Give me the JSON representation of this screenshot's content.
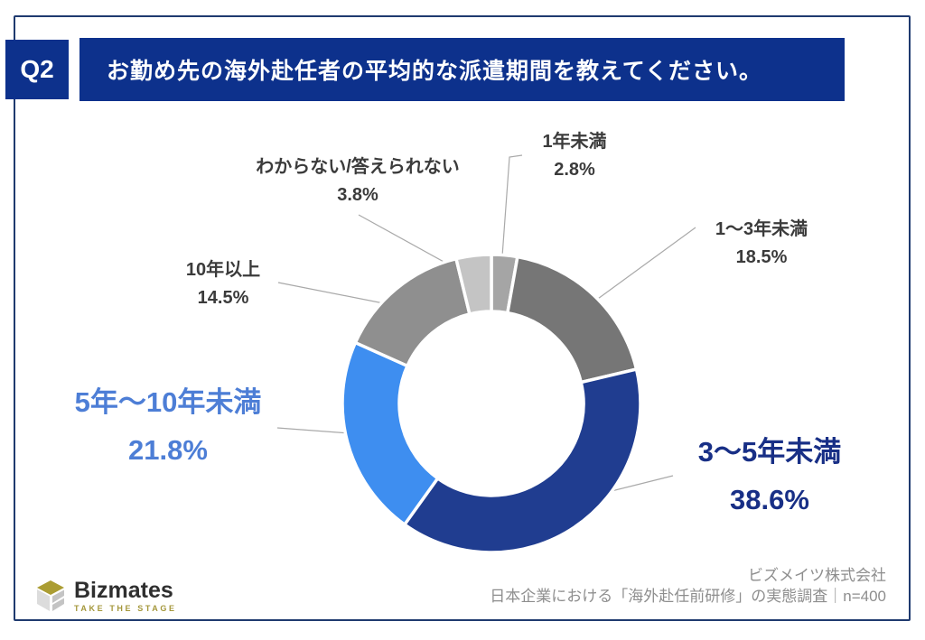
{
  "header": {
    "question_label": "Q2",
    "title": "お勤め先の海外赴任者の平均的な派遣期間を教えてください。"
  },
  "chart_data": {
    "type": "pie",
    "subtype": "donut",
    "title": "お勤め先の海外赴任者の平均的な派遣期間",
    "unit": "%",
    "direction": "clockwise",
    "start_angle": "top",
    "inner_radius_ratio": 0.62,
    "segments": [
      {
        "label": "1年未満",
        "value": 2.8,
        "pct_label": "2.8%",
        "color": "#A5A5A5"
      },
      {
        "label": "1〜3年未満",
        "value": 18.5,
        "pct_label": "18.5%",
        "color": "#767676"
      },
      {
        "label": "3〜5年未満",
        "value": 38.6,
        "pct_label": "38.6%",
        "color": "#203D90"
      },
      {
        "label": "5年〜10年未満",
        "value": 21.8,
        "pct_label": "21.8%",
        "color": "#3E8EF0"
      },
      {
        "label": "10年以上",
        "value": 14.5,
        "pct_label": "14.5%",
        "color": "#8F8F8F"
      },
      {
        "label": "わからない/答えられない",
        "value": 3.8,
        "pct_label": "3.8%",
        "color": "#C4C4C4"
      }
    ]
  },
  "footer": {
    "logo_text": "Bizmates",
    "logo_tagline": "TAKE THE STAGE",
    "source_company": "ビズメイツ株式会社",
    "source_line": "日本企業における「海外赴任前研修」の実態調査｜n=400"
  },
  "colors": {
    "accent_navy": "#0D318C",
    "card_border": "#1F3A6F",
    "big_label_blue": "#4D7ED6",
    "big_label_navy": "#182F86",
    "small_label": "#3B3B3B",
    "footer_text": "#8E8E8E",
    "leader_line": "#A9A9A9",
    "logo_gold": "#A4973B",
    "segment_divider": "#FFFFFF"
  }
}
